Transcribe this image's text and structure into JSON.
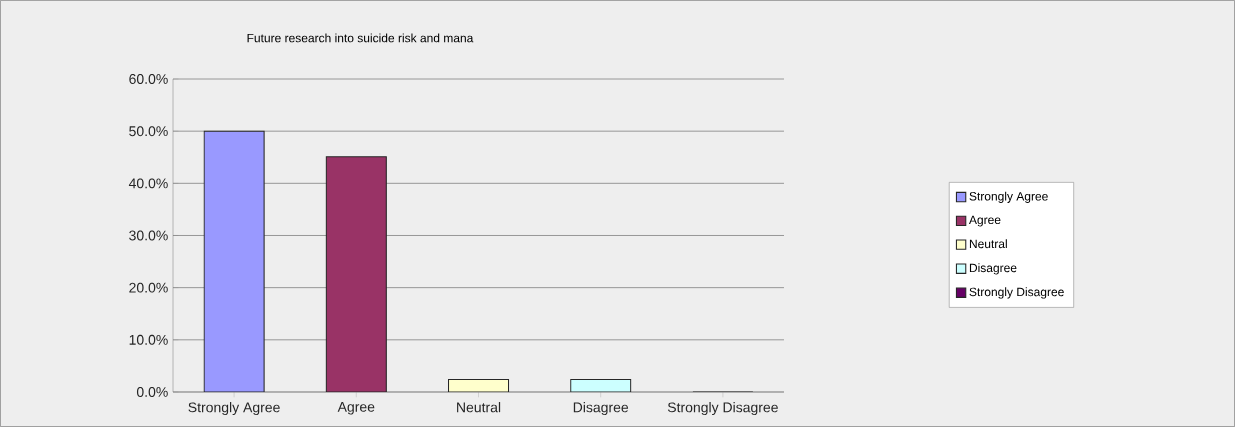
{
  "chart_data": {
    "type": "bar",
    "title": "Future research into suicide risk and mana",
    "categories": [
      "Strongly Agree",
      "Agree",
      "Neutral",
      "Disagree",
      "Strongly Disagree"
    ],
    "series": [
      {
        "name": "Strongly Agree",
        "color": "#9999ff",
        "values": [
          50.0,
          null,
          null,
          null,
          null
        ]
      },
      {
        "name": "Agree",
        "color": "#993366",
        "values": [
          null,
          45.1,
          null,
          null,
          null
        ]
      },
      {
        "name": "Neutral",
        "color": "#ffffcc",
        "values": [
          null,
          null,
          2.4,
          null,
          null
        ]
      },
      {
        "name": "Disagree",
        "color": "#ccffff",
        "values": [
          null,
          null,
          null,
          2.4,
          null
        ]
      },
      {
        "name": "Strongly Disagree",
        "color": "#660066",
        "values": [
          null,
          null,
          null,
          null,
          0
        ]
      }
    ],
    "ylim": [
      0,
      60
    ],
    "yticks": [
      {
        "value": 0,
        "label": "0.0%"
      },
      {
        "value": 10,
        "label": "10.0%"
      },
      {
        "value": 20,
        "label": "20.0%"
      },
      {
        "value": 30,
        "label": "30.0%"
      },
      {
        "value": 40,
        "label": "40.0%"
      },
      {
        "value": 50,
        "label": "50.0%"
      },
      {
        "value": 60,
        "label": "60.0%"
      }
    ],
    "grid": "y",
    "legend": "right"
  }
}
